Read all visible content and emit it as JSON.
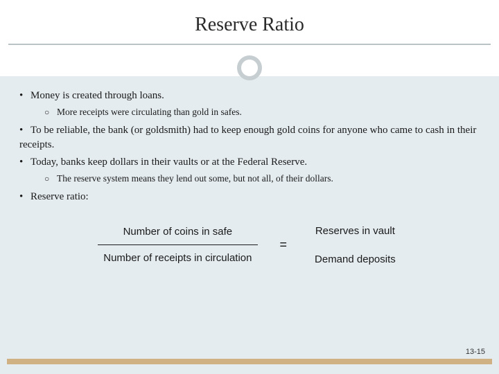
{
  "title": "Reserve Ratio",
  "bullets": {
    "b1": "Money is created through loans.",
    "b1a": "More receipts were circulating than gold in safes.",
    "b2": "To be reliable, the bank (or goldsmith) had to keep enough gold coins for anyone who came to cash in their receipts.",
    "b3": "Today, banks keep dollars in their vaults or at the Federal Reserve.",
    "b3a": "The reserve system means they lend out some, but not all, of their dollars.",
    "b4": "Reserve ratio:"
  },
  "formula": {
    "left_num": "Number of coins in safe",
    "left_den": "Number of receipts in circulation",
    "eq": "=",
    "right_num": "Reserves in vault",
    "right_den": "Demand deposits"
  },
  "pagenum": "13-15",
  "colors": {
    "page_bg": "#e4ecef",
    "top_bg": "#ffffff",
    "rule": "#b9c2c6",
    "ring": "#c6ced2",
    "stripe": "#cfb183",
    "text": "#1a1a1a"
  }
}
